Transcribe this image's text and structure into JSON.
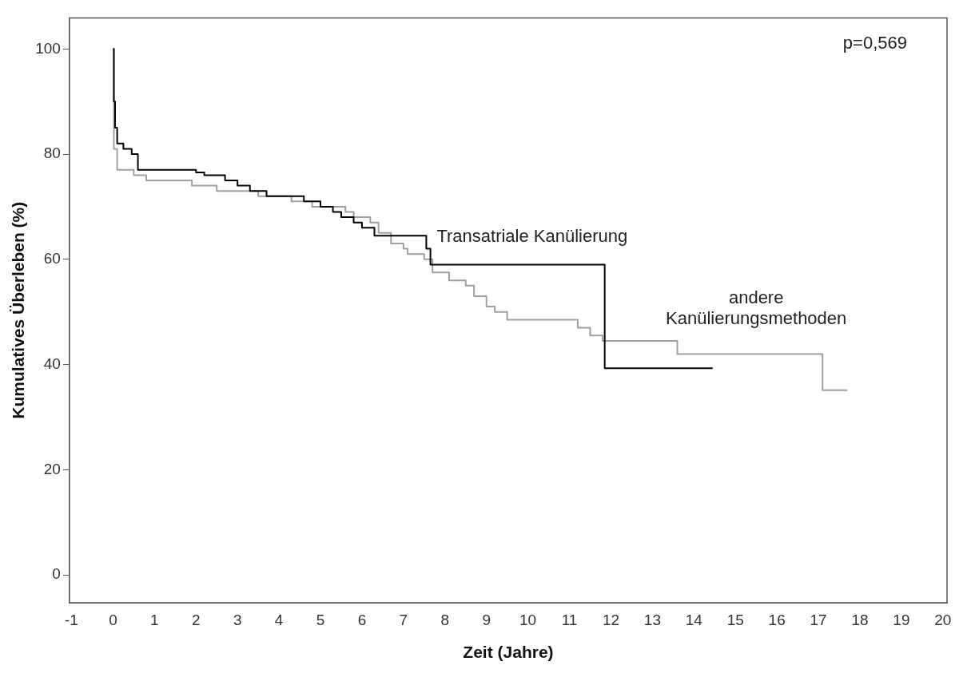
{
  "chart_data": {
    "type": "step",
    "xlabel": "Zeit (Jahre)",
    "ylabel": "Kumulatives Überleben (%)",
    "xlim": [
      -1.05,
      20.1
    ],
    "xticks": [
      -1,
      0,
      1,
      2,
      3,
      4,
      5,
      6,
      7,
      8,
      9,
      10,
      11,
      12,
      13,
      14,
      15,
      16,
      17,
      18,
      19,
      20
    ],
    "ylim": [
      -5.3,
      105.9
    ],
    "yticks": [
      0,
      20,
      40,
      60,
      80,
      100
    ],
    "grid": false,
    "legend": false,
    "annotations": [
      "p=0,569"
    ],
    "series": [
      {
        "name": "Transatriale Kanülierung",
        "color": "#000000",
        "x": [
          0,
          0.02,
          0.05,
          0.1,
          0.25,
          0.45,
          0.6,
          2.0,
          2.2,
          2.7,
          3.0,
          3.3,
          3.7,
          4.6,
          5.0,
          5.3,
          5.5,
          5.8,
          6.0,
          6.3,
          7.55,
          7.65,
          11.85,
          14.45
        ],
        "values": [
          100,
          90,
          85,
          82,
          81,
          80,
          77,
          76.5,
          76,
          75,
          74,
          73,
          72,
          71,
          70,
          69,
          68,
          67,
          66,
          64.5,
          62,
          59,
          39.3,
          39.3
        ]
      },
      {
        "name": "andere Kanülierungsmethoden",
        "color": "#a0a0a0",
        "x": [
          0,
          0.02,
          0.1,
          0.5,
          0.8,
          1.9,
          2.5,
          3.5,
          4.3,
          4.8,
          5.6,
          5.8,
          6.2,
          6.4,
          6.7,
          7.0,
          7.1,
          7.5,
          7.7,
          8.1,
          8.5,
          8.7,
          9.0,
          9.2,
          9.5,
          11.0,
          11.2,
          11.5,
          11.8,
          13.6,
          17.1,
          17.7
        ],
        "values": [
          100,
          81,
          77,
          76,
          75,
          74,
          73,
          72,
          71,
          70,
          69,
          68,
          67,
          65,
          63,
          62,
          61,
          60,
          57.5,
          56,
          55,
          53,
          51,
          50,
          48.5,
          48.5,
          47,
          45.5,
          44.5,
          42,
          35.1,
          35.1
        ]
      }
    ]
  }
}
